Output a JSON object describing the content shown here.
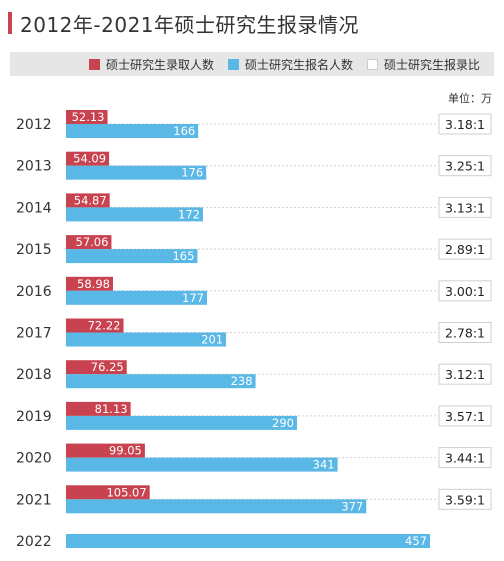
{
  "title": "2012年-2021年硕士研究生报录情况",
  "unit": "单位：万",
  "legend": {
    "admit_label": "硕士研究生录取人数",
    "apply_label": "硕士研究生报名人数",
    "ratio_label": "硕士研究生报录比"
  },
  "colors": {
    "admit": "#c8434f",
    "apply": "#5ab8e6",
    "title_accent": "#c8434f"
  },
  "chart_data": {
    "type": "bar",
    "orientation": "horizontal",
    "categories": [
      "2012",
      "2013",
      "2014",
      "2015",
      "2016",
      "2017",
      "2018",
      "2019",
      "2020",
      "2021",
      "2022"
    ],
    "series": [
      {
        "name": "硕士研究生录取人数",
        "values": [
          52.13,
          54.09,
          54.87,
          57.06,
          58.98,
          72.22,
          76.25,
          81.13,
          99.05,
          105.07,
          null
        ]
      },
      {
        "name": "硕士研究生报名人数",
        "values": [
          166,
          176,
          172,
          165,
          177,
          201,
          238,
          290,
          341,
          377,
          457
        ]
      }
    ],
    "ratio": {
      "name": "硕士研究生报录比",
      "values": [
        "3.18:1",
        "3.25:1",
        "3.13:1",
        "2.89:1",
        "3.00:1",
        "2.78:1",
        "3.12:1",
        "3.57:1",
        "3.44:1",
        "3.59:1",
        null
      ]
    },
    "value_labels": {
      "admit": [
        "52.13",
        "54.09",
        "54.87",
        "57.06",
        "58.98",
        "72.22",
        "76.25",
        "81.13",
        "99.05",
        "105.07",
        null
      ],
      "apply": [
        "166",
        "176",
        "172",
        "165",
        "177",
        "201",
        "238",
        "290",
        "341",
        "377",
        "457"
      ]
    },
    "title": "2012年-2021年硕士研究生报录情况",
    "xlim": [
      0,
      457
    ]
  }
}
